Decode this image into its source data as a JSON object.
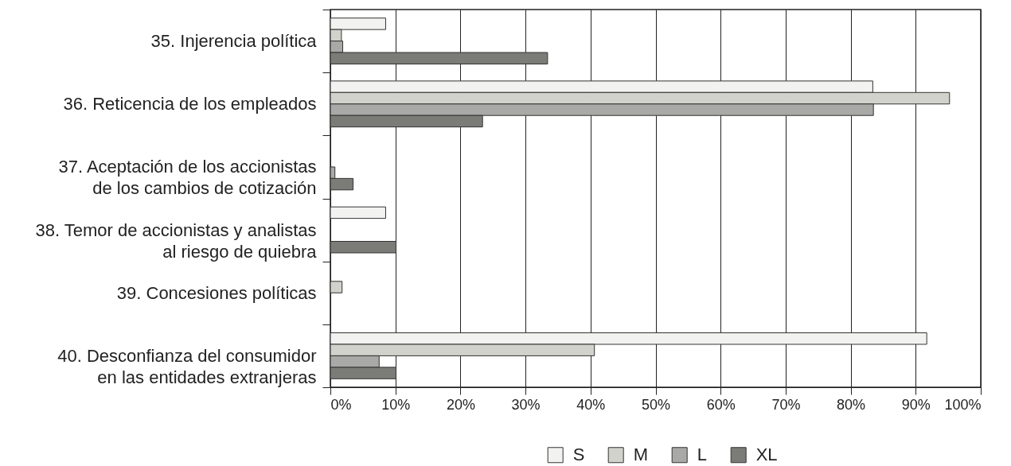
{
  "chart_data": {
    "type": "bar",
    "orientation": "horizontal",
    "categories": [
      "35. Injerencia política",
      "36. Reticencia de los empleados",
      "37. Aceptación de los accionistas\nde los cambios de cotización",
      "38. Temor de accionistas y analistas\nal riesgo de quiebra",
      "39. Concesiones políticas",
      "40. Desconfianza del consumidor\nen las entidades extranjeras"
    ],
    "series": [
      {
        "name": "S",
        "color": "#f2f2f0",
        "values": [
          8.5,
          83.4,
          null,
          8.5,
          null,
          91.7
        ]
      },
      {
        "name": "M",
        "color": "#d2d2cc",
        "values": [
          1.7,
          95.2,
          null,
          null,
          1.8,
          40.6
        ]
      },
      {
        "name": "L",
        "color": "#a9a9a7",
        "values": [
          1.9,
          83.5,
          0.7,
          null,
          null,
          7.5
        ]
      },
      {
        "name": "XL",
        "color": "#7b7b78",
        "values": [
          33.4,
          23.4,
          3.5,
          10.1,
          null,
          10.1
        ]
      }
    ],
    "xlim": [
      0,
      100
    ],
    "xticks": [
      {
        "value": 0,
        "label": "0%"
      },
      {
        "value": 10,
        "label": "10%"
      },
      {
        "value": 20,
        "label": "20%"
      },
      {
        "value": 30,
        "label": "30%"
      },
      {
        "value": 40,
        "label": "40%"
      },
      {
        "value": 50,
        "label": "50%"
      },
      {
        "value": 60,
        "label": "60%"
      },
      {
        "value": 70,
        "label": "70%"
      },
      {
        "value": 80,
        "label": "80%"
      },
      {
        "value": 90,
        "label": "90%"
      },
      {
        "value": 100,
        "label": "100%"
      }
    ],
    "grid": "x",
    "legend": "bottom"
  }
}
